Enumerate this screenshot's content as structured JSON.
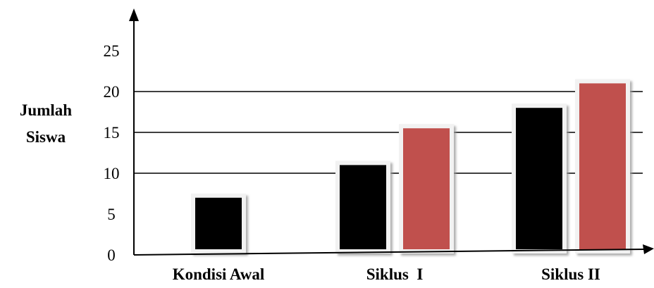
{
  "chart_data": {
    "type": "bar",
    "ylabel_lines": [
      "Jumlah",
      "Siswa"
    ],
    "xlabel": "",
    "categories": [
      "Kondisi Awal",
      "Siklus  I",
      "Siklus II"
    ],
    "ylim": [
      0,
      30
    ],
    "yticks": [
      0,
      5,
      10,
      15,
      20,
      25
    ],
    "gridlines": [
      10,
      15,
      20
    ],
    "grid": true,
    "legend": "none",
    "series": [
      {
        "values": [
          7,
          11,
          18
        ],
        "color": "#000000"
      },
      {
        "values": [
          null,
          15.5,
          21
        ],
        "color": "#c0504d"
      }
    ]
  }
}
